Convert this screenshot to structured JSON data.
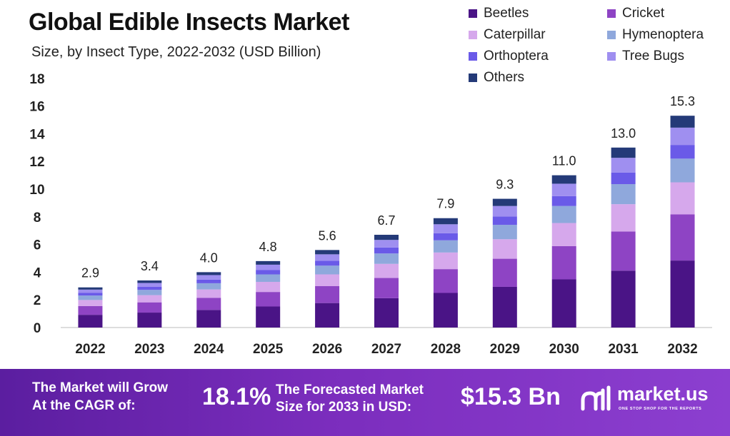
{
  "header": {
    "title": "Global Edible Insects Market",
    "subtitle": "Size, by Insect Type, 2022-2032 (USD Billion)"
  },
  "chart_data": {
    "type": "bar",
    "stacked": true,
    "title": "Global Edible Insects Market",
    "subtitle": "Size, by Insect Type, 2022-2032 (USD Billion)",
    "xlabel": "",
    "ylabel": "",
    "ylim": [
      0,
      18
    ],
    "yticks": [
      0,
      2,
      4,
      6,
      8,
      10,
      12,
      14,
      16,
      18
    ],
    "categories": [
      "2022",
      "2023",
      "2024",
      "2025",
      "2026",
      "2027",
      "2028",
      "2029",
      "2030",
      "2031",
      "2032"
    ],
    "totals": [
      2.9,
      3.4,
      4.0,
      4.8,
      5.6,
      6.7,
      7.9,
      9.3,
      11.0,
      13.0,
      15.3
    ],
    "total_labels": [
      "2.9",
      "3.4",
      "4.0",
      "4.8",
      "5.6",
      "6.7",
      "7.9",
      "9.3",
      "11.0",
      "13.0",
      "15.3"
    ],
    "series": [
      {
        "name": "Beetles",
        "color": "#4a1486",
        "values": [
          0.92,
          1.08,
          1.27,
          1.52,
          1.77,
          2.12,
          2.5,
          2.94,
          3.48,
          4.11,
          4.84
        ]
      },
      {
        "name": "Cricket",
        "color": "#8e44c4",
        "values": [
          0.63,
          0.74,
          0.87,
          1.05,
          1.22,
          1.46,
          1.72,
          2.03,
          2.4,
          2.83,
          3.33
        ]
      },
      {
        "name": "Caterpillar",
        "color": "#d6a8ec",
        "values": [
          0.44,
          0.52,
          0.61,
          0.73,
          0.85,
          1.02,
          1.2,
          1.41,
          1.67,
          1.97,
          2.32
        ]
      },
      {
        "name": "Hymenoptera",
        "color": "#8fa8dc",
        "values": [
          0.32,
          0.38,
          0.45,
          0.54,
          0.63,
          0.75,
          0.88,
          1.04,
          1.23,
          1.45,
          1.71
        ]
      },
      {
        "name": "Orthoptera",
        "color": "#6a5ae8",
        "values": [
          0.19,
          0.22,
          0.26,
          0.31,
          0.36,
          0.43,
          0.51,
          0.6,
          0.71,
          0.84,
          0.99
        ]
      },
      {
        "name": "Tree Bugs",
        "color": "#9f8ff0",
        "values": [
          0.24,
          0.28,
          0.33,
          0.39,
          0.46,
          0.55,
          0.65,
          0.76,
          0.9,
          1.06,
          1.25
        ]
      },
      {
        "name": "Others",
        "color": "#243a78",
        "values": [
          0.16,
          0.18,
          0.21,
          0.26,
          0.31,
          0.37,
          0.44,
          0.52,
          0.61,
          0.74,
          0.86
        ]
      }
    ],
    "legend_position": "top-right",
    "grid": false
  },
  "footer": {
    "cagr_label_line1": "The Market will Grow",
    "cagr_label_line2": "At the CAGR of:",
    "cagr_value": "18.1%",
    "forecast_label_line1": "The Forecasted Market",
    "forecast_label_line2": "Size for 2033 in USD:",
    "forecast_value": "$15.3 Bn",
    "brand_name": "market.us",
    "brand_tagline": "ONE STOP SHOP FOR THE REPORTS",
    "bar_color": "#6a25b0"
  }
}
